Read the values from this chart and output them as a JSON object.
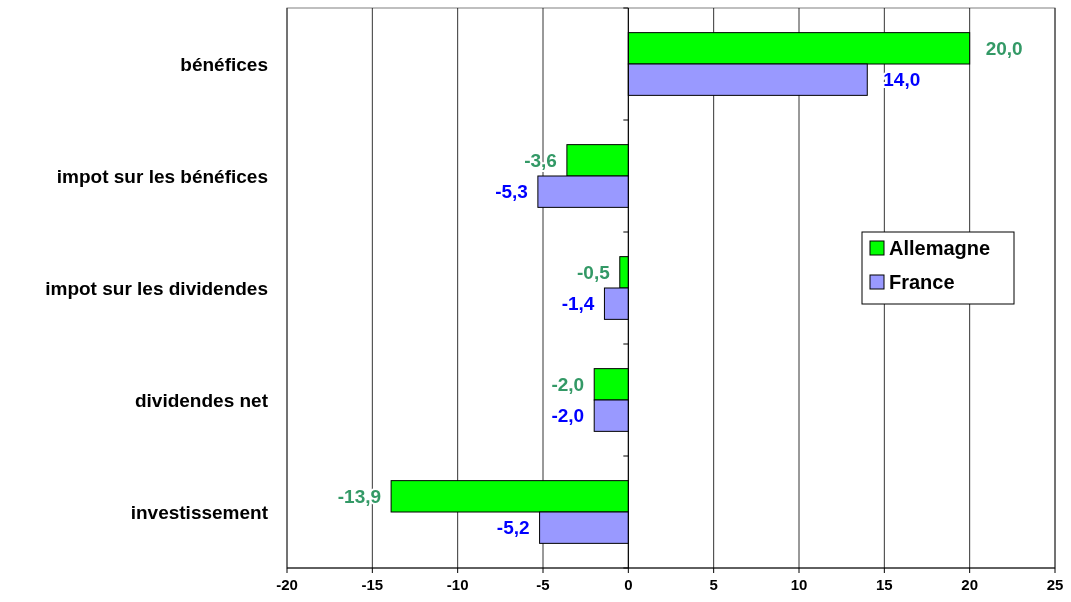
{
  "chart_data": {
    "type": "bar",
    "orientation": "horizontal",
    "categories": [
      "bénéfices",
      "impot sur les bénéfices",
      "impot sur les dividendes",
      "dividendes net",
      "investissement"
    ],
    "series": [
      {
        "name": "Allemagne",
        "color": "#00ff00",
        "values": [
          20.0,
          -3.6,
          -0.5,
          -2.0,
          -13.9
        ],
        "value_labels": [
          "20,0",
          "-3,6",
          "-0,5",
          "-2,0",
          "-13,9"
        ]
      },
      {
        "name": "France",
        "color": "#9999ff",
        "values": [
          14.0,
          -5.3,
          -1.4,
          -2.0,
          -5.2
        ],
        "value_labels": [
          "14,0",
          "-5,3",
          "-1,4",
          "-2,0",
          "-5,2"
        ]
      }
    ],
    "xlim": [
      -20,
      25
    ],
    "xticks": [
      -20,
      -15,
      -10,
      -5,
      0,
      5,
      10,
      15,
      20,
      25
    ],
    "grid": "x",
    "legend": "right"
  }
}
